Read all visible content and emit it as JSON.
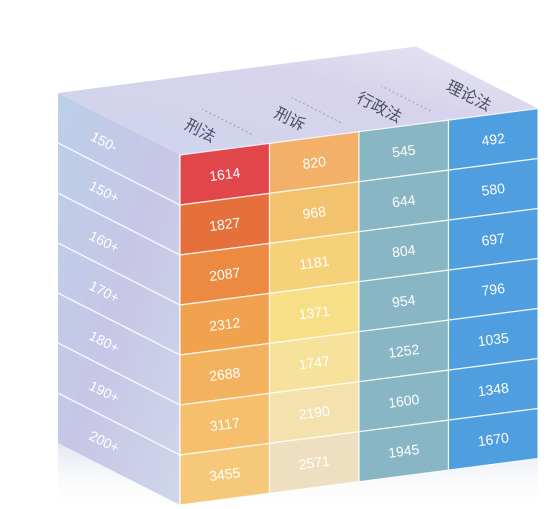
{
  "chart_data": {
    "type": "heatmap",
    "columns": [
      "刑法",
      "刑诉",
      "行政法",
      "理论法"
    ],
    "rows": [
      "150-",
      "150+",
      "160+",
      "170+",
      "180+",
      "190+",
      "200+"
    ],
    "values": [
      [
        1614,
        820,
        545,
        492
      ],
      [
        1827,
        968,
        644,
        580
      ],
      [
        2087,
        1181,
        804,
        697
      ],
      [
        2312,
        1371,
        954,
        796
      ],
      [
        2688,
        1747,
        1252,
        1035
      ],
      [
        3117,
        2190,
        1600,
        1348
      ],
      [
        3455,
        2571,
        1945,
        1670
      ]
    ],
    "column_colors": {
      "刑法": [
        "#e0464a",
        "#e6703c",
        "#ec8a42",
        "#f0a24e",
        "#f3b35e",
        "#f5bf6c",
        "#f6c97a"
      ],
      "刑诉": [
        "#f2b068",
        "#f3c26e",
        "#f5d27a",
        "#f7df88",
        "#f6e29a",
        "#f3e1ae",
        "#eedfc0"
      ],
      "行政法": "#88b6c4",
      "理论法": "#4e9ee0"
    },
    "side_color": "#c8cfe6",
    "top_color": "#d5d9eb"
  }
}
